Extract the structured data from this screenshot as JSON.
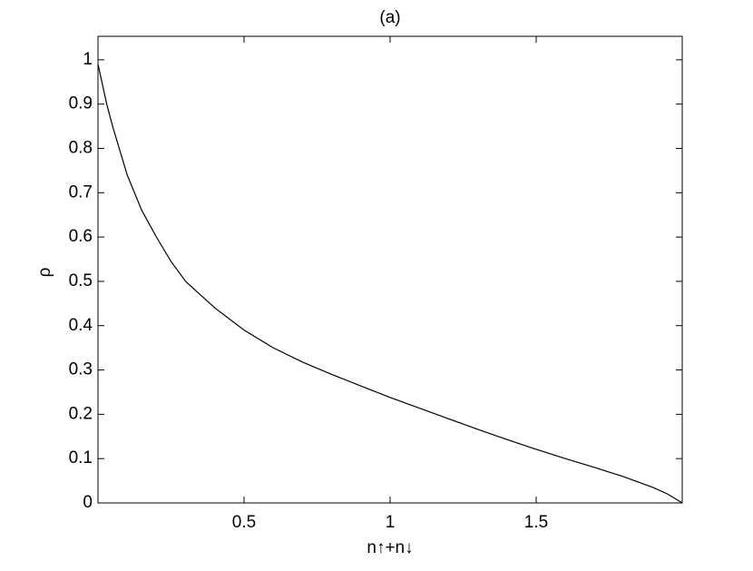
{
  "chart_data": {
    "type": "line",
    "title": "(a)",
    "xlabel": "n↑+n↓",
    "ylabel": "ρ",
    "x": [
      0,
      0.01,
      0.03,
      0.05,
      0.1,
      0.15,
      0.2,
      0.25,
      0.3,
      0.4,
      0.5,
      0.6,
      0.7,
      0.8,
      0.9,
      1.0,
      1.1,
      1.2,
      1.3,
      1.4,
      1.5,
      1.6,
      1.7,
      1.8,
      1.9,
      1.95,
      2.0
    ],
    "series": [
      {
        "color": "#000000",
        "values": [
          0.99,
          0.96,
          0.9,
          0.85,
          0.74,
          0.66,
          0.6,
          0.545,
          0.5,
          0.44,
          0.39,
          0.35,
          0.318,
          0.29,
          0.264,
          0.238,
          0.214,
          0.19,
          0.166,
          0.143,
          0.121,
          0.1,
          0.08,
          0.059,
          0.035,
          0.02,
          0
        ]
      }
    ],
    "xlim": [
      0,
      2
    ],
    "xticks": [
      0.5,
      1,
      1.5
    ],
    "ylim": [
      0,
      1.053
    ],
    "yticks": [
      0,
      0.1,
      0.2,
      0.3,
      0.4,
      0.5,
      0.6,
      0.7,
      0.8,
      0.9,
      1
    ]
  }
}
